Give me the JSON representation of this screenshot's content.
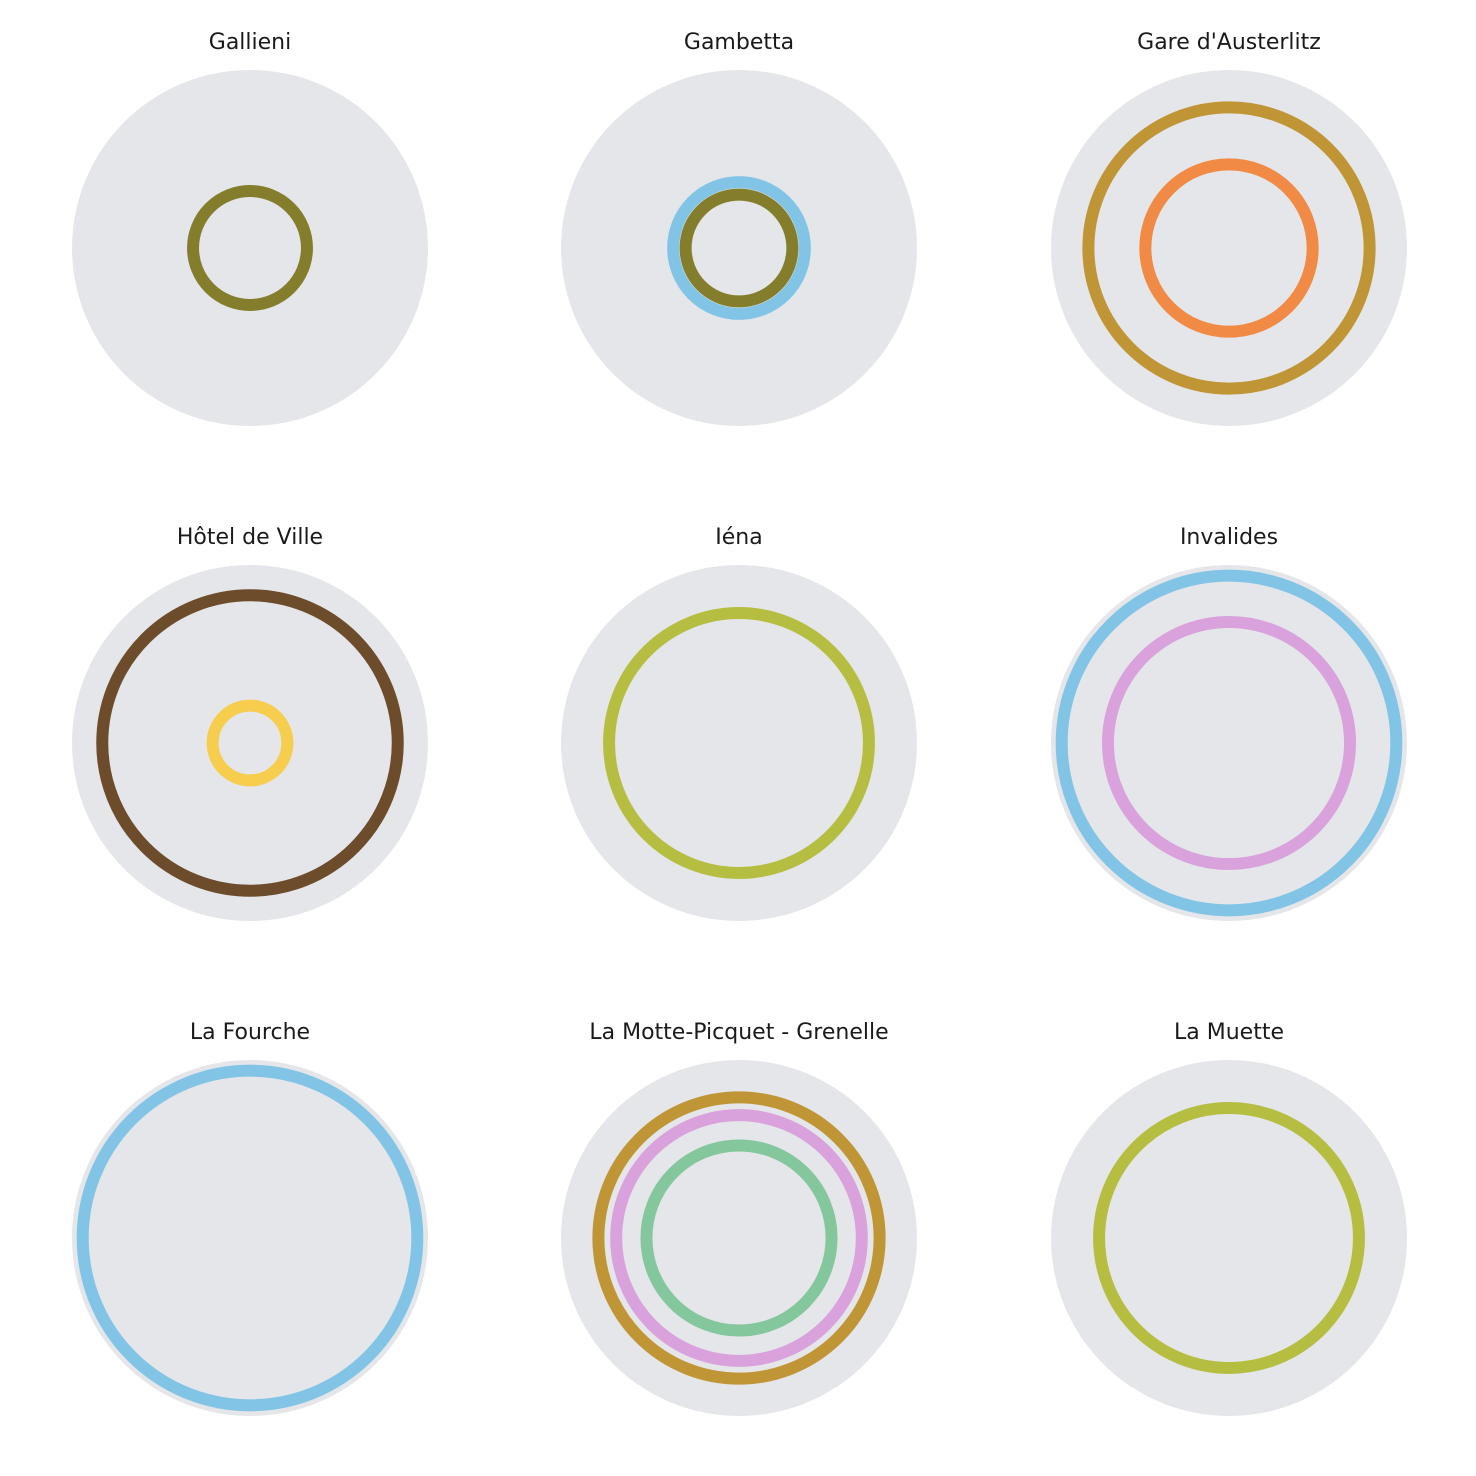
{
  "chart_data": [
    {
      "type": "concentric-rings",
      "title": "Gallieni",
      "rings": [
        {
          "radius": 0.32,
          "color": "#847d2b"
        }
      ]
    },
    {
      "type": "concentric-rings",
      "title": "Gambetta",
      "rings": [
        {
          "radius": 0.37,
          "color": "#82c4e6"
        },
        {
          "radius": 0.3,
          "color": "#847d2b"
        }
      ]
    },
    {
      "type": "concentric-rings",
      "title": "Gare d'Austerlitz",
      "rings": [
        {
          "radius": 0.79,
          "color": "#c09535"
        },
        {
          "radius": 0.47,
          "color": "#f08a44"
        }
      ]
    },
    {
      "type": "concentric-rings",
      "title": "Hôtel de Ville",
      "rings": [
        {
          "radius": 0.83,
          "color": "#6c4c2a"
        },
        {
          "radius": 0.21,
          "color": "#f6cd4c"
        }
      ]
    },
    {
      "type": "concentric-rings",
      "title": "Iéna",
      "rings": [
        {
          "radius": 0.73,
          "color": "#b6be42"
        }
      ]
    },
    {
      "type": "concentric-rings",
      "title": "Invalides",
      "rings": [
        {
          "radius": 0.94,
          "color": "#82c4e6"
        },
        {
          "radius": 0.68,
          "color": "#d9a2dd"
        }
      ]
    },
    {
      "type": "concentric-rings",
      "title": "La Fourche",
      "rings": [
        {
          "radius": 0.94,
          "color": "#82c4e6"
        }
      ]
    },
    {
      "type": "concentric-rings",
      "title": "La Motte-Picquet - Grenelle",
      "rings": [
        {
          "radius": 0.79,
          "color": "#c09535"
        },
        {
          "radius": 0.69,
          "color": "#d9a2dd"
        },
        {
          "radius": 0.52,
          "color": "#85c79d"
        }
      ]
    },
    {
      "type": "concentric-rings",
      "title": "La Muette",
      "rings": [
        {
          "radius": 0.73,
          "color": "#b6be42"
        }
      ]
    }
  ],
  "colors": {
    "panel_background": "#e5e6e9",
    "page_background": "#ffffff",
    "title_text": "#1a1a1a"
  }
}
